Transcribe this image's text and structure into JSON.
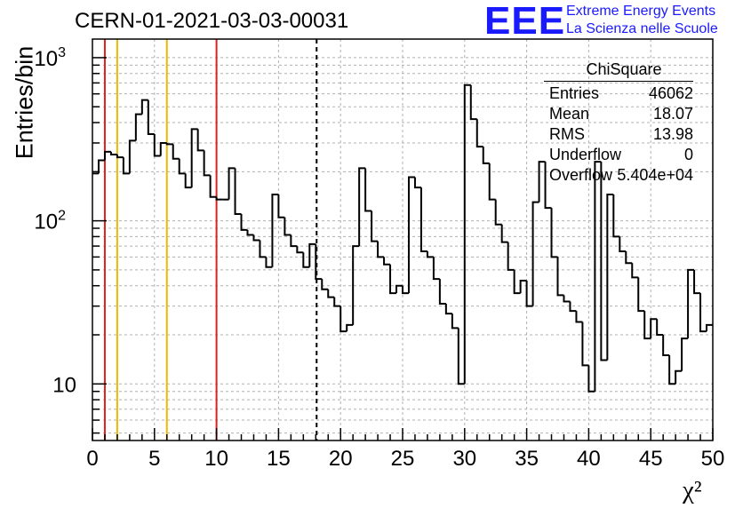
{
  "header": {
    "run_title": "CERN-01-2021-03-03-00031",
    "logo_text": "EEE",
    "logo_line1": "Extreme Energy Events",
    "logo_line2": "La Scienza nelle Scuole"
  },
  "stats_box": {
    "name": "ChiSquare",
    "rows": [
      {
        "label": "Entries",
        "value": "46062"
      },
      {
        "label": "Mean",
        "value": "18.07"
      },
      {
        "label": "RMS",
        "value": "13.98"
      },
      {
        "label": "Underflow",
        "value": "0"
      },
      {
        "label": "Overflow",
        "value": "5.404e+04"
      }
    ]
  },
  "chart_data": {
    "type": "histogram",
    "xlabel": "χ²",
    "ylabel": "Entries/bin",
    "xlim": [
      0,
      50
    ],
    "ylim": [
      4.5,
      1300
    ],
    "yscale": "log",
    "grid": true,
    "x_ticks": [
      "0",
      "5",
      "10",
      "15",
      "20",
      "25",
      "30",
      "35",
      "40",
      "45",
      "50"
    ],
    "y_ticks": [
      {
        "value": 10,
        "label": "10"
      },
      {
        "value": 100,
        "label": "10^2"
      },
      {
        "value": 1000,
        "label": "10^3"
      }
    ],
    "bin_width": 0.5,
    "values": [
      195,
      235,
      265,
      255,
      245,
      195,
      310,
      450,
      550,
      340,
      250,
      300,
      295,
      240,
      195,
      160,
      365,
      270,
      190,
      140,
      135,
      135,
      210,
      110,
      88,
      82,
      76,
      60,
      52,
      145,
      105,
      82,
      70,
      64,
      52,
      72,
      44,
      38,
      34,
      30,
      21,
      23,
      70,
      210,
      115,
      75,
      60,
      54,
      36,
      40,
      36,
      185,
      160,
      65,
      60,
      44,
      31,
      27,
      22,
      10,
      680,
      420,
      285,
      225,
      135,
      95,
      74,
      50,
      36,
      43,
      30,
      130,
      230,
      120,
      60,
      35,
      32,
      28,
      24,
      13,
      9,
      230,
      14,
      145,
      80,
      65,
      55,
      45,
      28,
      19,
      25,
      20,
      15,
      10,
      12,
      19,
      50,
      36,
      21,
      23
    ],
    "vertical_lines": [
      {
        "x": 1,
        "color": "#e0201e",
        "style": "solid"
      },
      {
        "x": 2,
        "color": "#f0b800",
        "style": "solid"
      },
      {
        "x": 6,
        "color": "#f0b800",
        "style": "solid"
      },
      {
        "x": 10,
        "color": "#e0201e",
        "style": "solid"
      },
      {
        "x": 18.07,
        "color": "#000000",
        "style": "dashed"
      }
    ]
  }
}
